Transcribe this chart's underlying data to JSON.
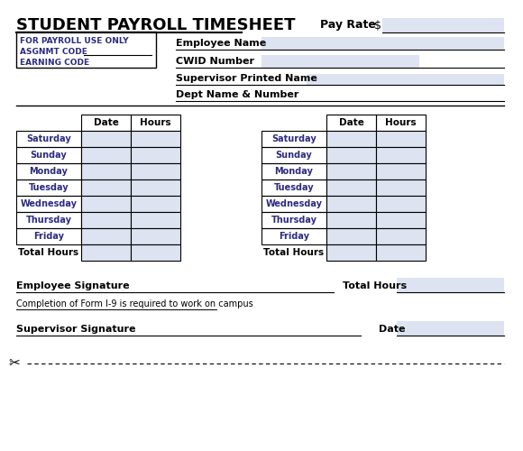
{
  "title": "STUDENT PAYROLL TIMESHEET",
  "pay_rate_label": "Pay Rate",
  "pay_rate_symbol": "$",
  "for_payroll_label": "FOR PAYROLL USE ONLY",
  "asgnmt_label": "ASGNMT CODE",
  "earning_label": "EARNING CODE",
  "employee_name_label": "Employee Name",
  "cwid_label": "CWID Number",
  "supervisor_name_label": "Supervisor Printed Name",
  "dept_label": "Dept Name & Number",
  "days": [
    "Saturday",
    "Sunday",
    "Monday",
    "Tuesday",
    "Wednesday",
    "Thursday",
    "Friday"
  ],
  "total_hours_label": "Total Hours",
  "date_col": "Date",
  "hours_col": "Hours",
  "employee_sig_label": "Employee Signature",
  "total_hours_bottom_label": "Total Hours",
  "i9_label": "Completion of Form I-9 is required to work on campus",
  "supervisor_sig_label": "Supervisor Signature",
  "date_label": "Date",
  "bg_color": "#ffffff",
  "fill_color": "#dde3f0",
  "border_color": "#000000",
  "text_color": "#000000",
  "title_color": "#000000",
  "label_color": "#2c2c80"
}
